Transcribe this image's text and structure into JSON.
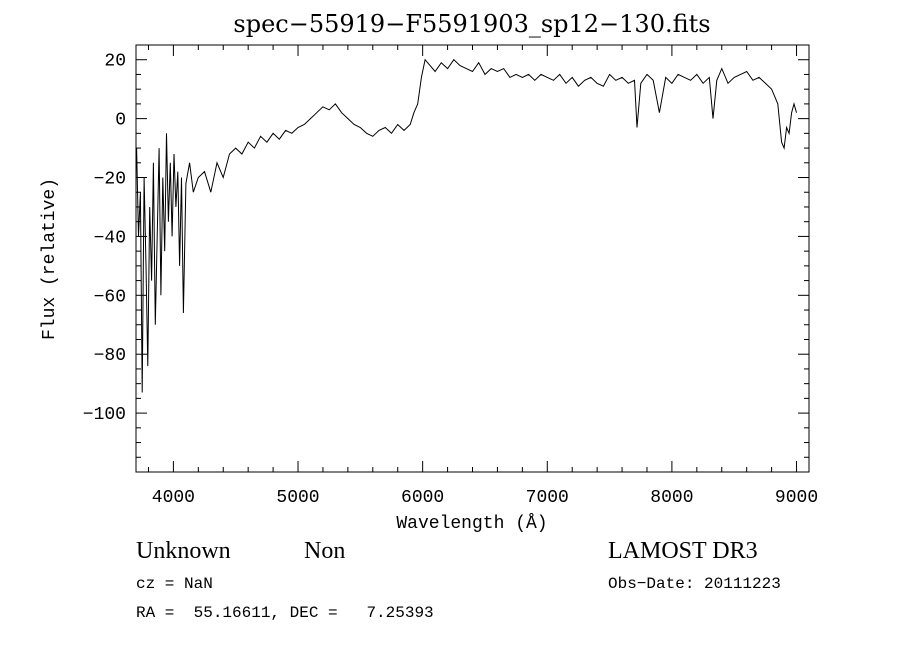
{
  "chart_data": {
    "type": "line",
    "title": "spec−55919−F5591903_sp12−130.fits",
    "xlabel": "Wavelength (Å)",
    "ylabel": "Flux (relative)",
    "xlim": [
      3700,
      9100
    ],
    "ylim": [
      -120,
      25
    ],
    "xticks": [
      4000,
      5000,
      6000,
      7000,
      8000,
      9000
    ],
    "yticks": [
      20,
      0,
      -20,
      -40,
      -60,
      -80,
      -100
    ],
    "ytick_labels": [
      "20",
      "0",
      "−20",
      "−40",
      "−60",
      "−80",
      "−100"
    ],
    "grid": false,
    "series": [
      {
        "x": [
          3705,
          3720,
          3735,
          3750,
          3765,
          3780,
          3795,
          3810,
          3825,
          3840,
          3855,
          3870,
          3885,
          3900,
          3915,
          3930,
          3945,
          3960,
          3975,
          3990,
          4005,
          4020,
          4035,
          4050,
          4065,
          4080,
          4100,
          4130,
          4160,
          4200,
          4250,
          4300,
          4350,
          4400,
          4450,
          4500,
          4550,
          4600,
          4650,
          4700,
          4750,
          4800,
          4850,
          4900,
          4950,
          5000,
          5050,
          5100,
          5150,
          5200,
          5250,
          5300,
          5350,
          5400,
          5450,
          5500,
          5550,
          5600,
          5650,
          5700,
          5750,
          5800,
          5850,
          5900,
          5930,
          5960,
          5990,
          6020,
          6060,
          6100,
          6150,
          6200,
          6250,
          6300,
          6350,
          6400,
          6450,
          6500,
          6550,
          6600,
          6650,
          6700,
          6750,
          6800,
          6850,
          6900,
          6950,
          7000,
          7050,
          7100,
          7150,
          7200,
          7250,
          7300,
          7350,
          7400,
          7450,
          7500,
          7550,
          7600,
          7650,
          7700,
          7720,
          7750,
          7800,
          7850,
          7900,
          7950,
          8000,
          8050,
          8100,
          8150,
          8200,
          8250,
          8300,
          8330,
          8360,
          8400,
          8450,
          8500,
          8550,
          8600,
          8650,
          8700,
          8750,
          8800,
          8820,
          8850,
          8880,
          8900,
          8920,
          8940,
          8960,
          8980,
          9000
        ],
        "y": [
          -10,
          -40,
          -25,
          -93,
          -20,
          -50,
          -84,
          -30,
          -55,
          -15,
          -70,
          -40,
          -10,
          -60,
          -20,
          -45,
          -5,
          -35,
          -15,
          -40,
          -12,
          -30,
          -18,
          -50,
          -20,
          -66,
          -22,
          -15,
          -25,
          -20,
          -18,
          -25,
          -15,
          -20,
          -12,
          -10,
          -12,
          -8,
          -10,
          -6,
          -8,
          -5,
          -7,
          -4,
          -5,
          -3,
          -2,
          0,
          2,
          4,
          3,
          5,
          2,
          0,
          -2,
          -3,
          -5,
          -6,
          -4,
          -3,
          -5,
          -2,
          -4,
          -2,
          2,
          5,
          14,
          20,
          18,
          16,
          19,
          17,
          20,
          18,
          17,
          16,
          19,
          15,
          17,
          16,
          17,
          14,
          15,
          14,
          15,
          13,
          15,
          14,
          13,
          15,
          12,
          14,
          11,
          13,
          14,
          12,
          11,
          15,
          13,
          14,
          12,
          13,
          -3,
          12,
          15,
          13,
          2,
          14,
          12,
          15,
          14,
          13,
          15,
          12,
          14,
          0,
          13,
          17,
          12,
          14,
          15,
          16,
          13,
          14,
          12,
          10,
          8,
          5,
          -8,
          -10,
          -3,
          -5,
          2,
          5,
          2
        ]
      }
    ]
  },
  "info": {
    "class_label": "Unknown",
    "subclass_label": "Non",
    "cz": "cz = NaN",
    "radec": "RA =  55.16611, DEC =   7.25393",
    "survey": "LAMOST DR3",
    "obs_date": "Obs−Date: 20111223"
  }
}
